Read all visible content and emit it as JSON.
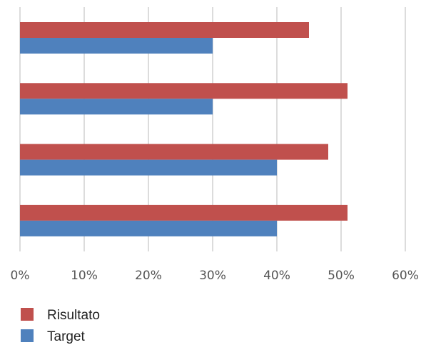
{
  "chart_data": {
    "type": "bar",
    "orientation": "horizontal",
    "categories": [
      "",
      "",
      "",
      ""
    ],
    "series": [
      {
        "name": "Risultato",
        "color": "#c0504d",
        "values": [
          45,
          51,
          48,
          51
        ]
      },
      {
        "name": "Target",
        "color": "#4f81bd",
        "values": [
          30,
          30,
          40,
          40
        ]
      }
    ],
    "xlim": [
      0,
      60
    ],
    "x_ticks": [
      "0%",
      "10%",
      "20%",
      "30%",
      "40%",
      "50%",
      "60%"
    ],
    "grid": true,
    "legend_position": "bottom-left"
  }
}
